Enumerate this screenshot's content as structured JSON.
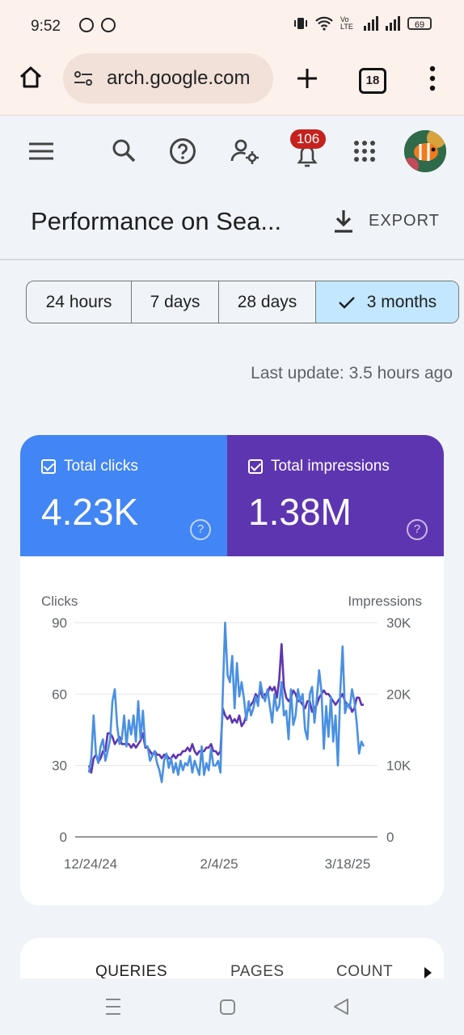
{
  "status_bar": {
    "time": "9:52",
    "battery": "69",
    "network": "Vo LTE"
  },
  "browser": {
    "url": "arch.google.com",
    "tab_count": "18"
  },
  "app_bar": {
    "notification_count": "106"
  },
  "page": {
    "title": "Performance on Sea...",
    "export_label": "EXPORT"
  },
  "date_range": {
    "options": [
      "24 hours",
      "7 days",
      "28 days",
      "3 months"
    ],
    "selected": "3 months"
  },
  "last_update": "Last update: 3.5 hours ago",
  "metrics": {
    "clicks": {
      "label": "Total clicks",
      "value": "4.23K",
      "color": "#4285f4"
    },
    "impressions": {
      "label": "Total impressions",
      "value": "1.38M",
      "color": "#5e35b1"
    }
  },
  "chart_data": {
    "type": "line",
    "left_axis_label": "Clicks",
    "right_axis_label": "Impressions",
    "left_ticks": [
      "90",
      "60",
      "30",
      "0"
    ],
    "right_ticks": [
      "30K",
      "20K",
      "10K",
      "0"
    ],
    "x_tick_labels": [
      "12/24/24",
      "2/4/25",
      "3/18/25"
    ],
    "left_range": [
      0,
      90
    ],
    "right_range": [
      0,
      30000
    ],
    "series": [
      {
        "name": "Total clicks",
        "axis": "left",
        "color": "#4a90e2",
        "values": [
          27,
          33,
          51,
          35,
          31,
          38,
          41,
          32,
          36,
          41,
          57,
          62,
          47,
          39,
          41,
          51,
          38,
          49,
          43,
          51,
          40,
          57,
          41,
          53,
          38,
          38,
          32,
          34,
          36,
          31,
          28,
          23,
          32,
          35,
          29,
          33,
          27,
          31,
          26,
          32,
          28,
          31,
          30,
          34,
          27,
          32,
          29,
          26,
          38,
          26,
          31,
          28,
          37,
          30,
          30,
          32,
          27,
          60,
          90,
          68,
          65,
          76,
          54,
          73,
          59,
          65,
          58,
          49,
          57,
          51,
          54,
          59,
          55,
          65,
          60,
          57,
          62,
          55,
          48,
          60,
          53,
          55,
          65,
          51,
          53,
          41,
          62,
          47,
          51,
          62,
          57,
          60,
          45,
          41,
          60,
          63,
          48,
          58,
          70,
          61,
          37,
          55,
          42,
          59,
          40,
          51,
          30,
          61,
          80,
          52,
          56,
          54,
          62,
          57,
          48,
          35,
          40,
          38
        ]
      },
      {
        "name": "Total impressions",
        "axis": "right",
        "color": "#5e35b1",
        "values": [
          10000,
          9000,
          11000,
          11500,
          10500,
          11000,
          12000,
          12000,
          14500,
          14500,
          14000,
          13000,
          13500,
          14000,
          13000,
          13000,
          13000,
          13000,
          12500,
          13000,
          12500,
          13000,
          13500,
          14500,
          12500,
          12500,
          12000,
          11500,
          12000,
          11500,
          11500,
          11000,
          11500,
          11500,
          11000,
          11000,
          11500,
          11000,
          11500,
          11500,
          12000,
          12000,
          12500,
          12000,
          13000,
          12000,
          11500,
          12000,
          12000,
          12000,
          12500,
          12500,
          13000,
          12000,
          12000,
          11500,
          12000,
          18000,
          17000,
          16500,
          17000,
          16000,
          16500,
          16000,
          17000,
          15500,
          16000,
          17000,
          18000,
          18500,
          19000,
          20000,
          19500,
          20500,
          19500,
          20000,
          20000,
          21000,
          20500,
          21000,
          19500,
          22000,
          27000,
          21000,
          19500,
          19000,
          19500,
          20500,
          20000,
          19000,
          19000,
          18500,
          18000,
          19000,
          19000,
          17500,
          18000,
          18500,
          19500,
          20000,
          20500,
          20000,
          20000,
          19500,
          19000,
          18500,
          19000,
          19500,
          20000,
          19000,
          18500,
          18500,
          17500,
          18000,
          19500,
          19500,
          18500,
          18500
        ]
      }
    ]
  },
  "report_tabs": [
    "QUERIES",
    "PAGES",
    "COUNT"
  ]
}
